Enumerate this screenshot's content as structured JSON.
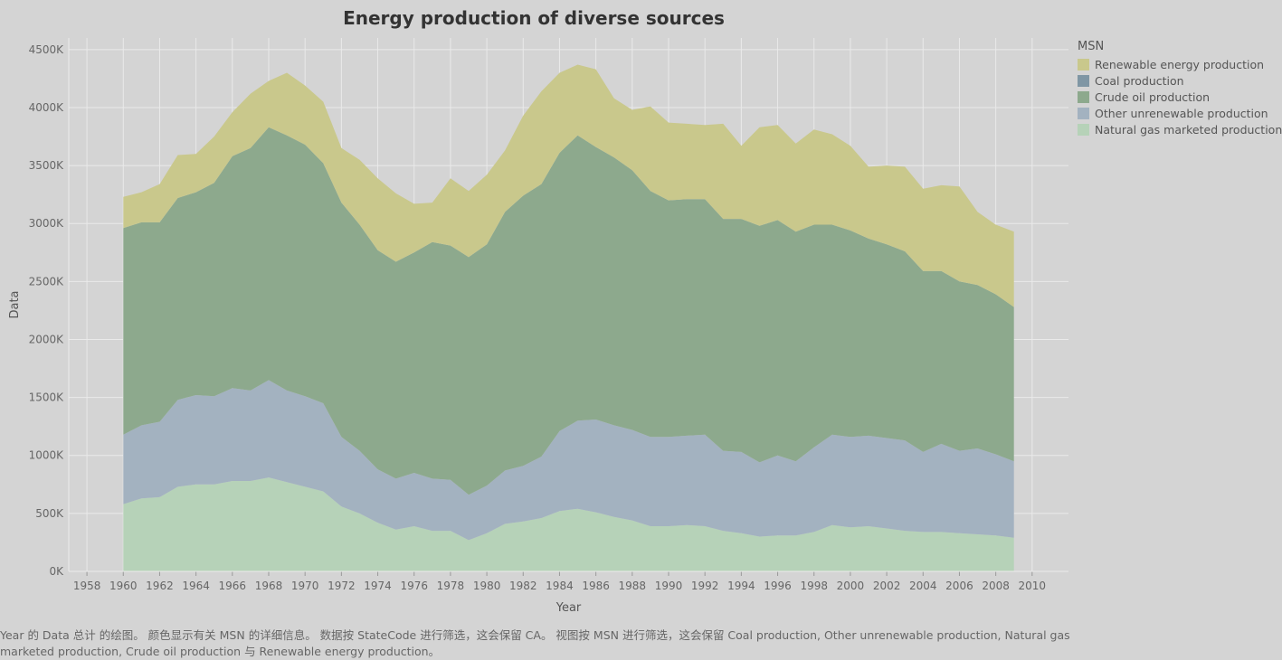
{
  "chart_data": {
    "type": "area",
    "stacked": true,
    "title": "Energy production of diverse sources",
    "xlabel": "Year",
    "ylabel": "Data",
    "xlim": [
      1957,
      2012
    ],
    "ylim": [
      0,
      4600
    ],
    "x_ticks": [
      "1958",
      "1960",
      "1962",
      "1964",
      "1966",
      "1968",
      "1970",
      "1972",
      "1974",
      "1976",
      "1978",
      "1980",
      "1982",
      "1984",
      "1986",
      "1988",
      "1990",
      "1992",
      "1994",
      "1996",
      "1998",
      "2000",
      "2002",
      "2004",
      "2006",
      "2008",
      "2010"
    ],
    "y_ticks": [
      "0K",
      "500K",
      "1000K",
      "1500K",
      "2000K",
      "2500K",
      "3000K",
      "3500K",
      "4000K",
      "4500K"
    ],
    "grid": true,
    "legend_position": "right",
    "legend_title": "MSN",
    "x": [
      1960,
      1961,
      1962,
      1963,
      1964,
      1965,
      1966,
      1967,
      1968,
      1969,
      1970,
      1971,
      1972,
      1973,
      1974,
      1975,
      1976,
      1977,
      1978,
      1979,
      1980,
      1981,
      1982,
      1983,
      1984,
      1985,
      1986,
      1987,
      1988,
      1989,
      1990,
      1991,
      1992,
      1993,
      1994,
      1995,
      1996,
      1997,
      1998,
      1999,
      2000,
      2001,
      2002,
      2003,
      2004,
      2005,
      2006,
      2007,
      2008,
      2009
    ],
    "series": [
      {
        "name": "Natural gas marketed production",
        "color": "#b6d2b8",
        "values": [
          580,
          630,
          640,
          730,
          750,
          750,
          780,
          780,
          810,
          770,
          730,
          690,
          560,
          500,
          420,
          360,
          390,
          350,
          350,
          270,
          330,
          410,
          430,
          460,
          520,
          540,
          510,
          470,
          440,
          390,
          390,
          400,
          390,
          350,
          330,
          300,
          310,
          310,
          340,
          400,
          380,
          390,
          370,
          350,
          340,
          340,
          330,
          320,
          310,
          290
        ]
      },
      {
        "name": "Other unrenewable production",
        "color": "#a3b2c0",
        "values": [
          600,
          630,
          650,
          750,
          770,
          760,
          800,
          780,
          840,
          790,
          780,
          760,
          600,
          540,
          460,
          440,
          460,
          450,
          440,
          390,
          410,
          460,
          480,
          530,
          690,
          760,
          800,
          790,
          780,
          770,
          770,
          770,
          790,
          690,
          700,
          640,
          690,
          640,
          730,
          780,
          780,
          780,
          780,
          780,
          690,
          760,
          710,
          740,
          700,
          660
        ]
      },
      {
        "name": "Coal production",
        "color": "#7f96a4",
        "values": [
          0,
          0,
          0,
          0,
          0,
          0,
          0,
          0,
          0,
          0,
          0,
          0,
          0,
          0,
          0,
          0,
          0,
          0,
          0,
          0,
          0,
          0,
          0,
          0,
          0,
          0,
          0,
          0,
          0,
          0,
          0,
          0,
          0,
          0,
          0,
          0,
          0,
          0,
          0,
          0,
          0,
          0,
          0,
          0,
          0,
          0,
          0,
          0,
          0,
          0
        ]
      },
      {
        "name": "Crude oil production",
        "color": "#8da98d",
        "values": [
          1780,
          1750,
          1720,
          1740,
          1750,
          1840,
          2000,
          2090,
          2180,
          2200,
          2170,
          2070,
          2020,
          1950,
          1890,
          1870,
          1900,
          2040,
          2020,
          2050,
          2080,
          2230,
          2330,
          2350,
          2400,
          2460,
          2350,
          2310,
          2240,
          2120,
          2040,
          2040,
          2030,
          2000,
          2010,
          2040,
          2030,
          1980,
          1920,
          1810,
          1780,
          1700,
          1670,
          1630,
          1560,
          1490,
          1460,
          1410,
          1380,
          1330
        ]
      },
      {
        "name": "Renewable energy production",
        "color": "#c9c88c",
        "values": [
          270,
          260,
          330,
          370,
          330,
          400,
          380,
          470,
          400,
          540,
          510,
          530,
          470,
          560,
          620,
          590,
          420,
          340,
          580,
          570,
          600,
          530,
          690,
          800,
          690,
          610,
          670,
          510,
          520,
          730,
          670,
          650,
          640,
          820,
          630,
          850,
          820,
          760,
          820,
          780,
          730,
          620,
          680,
          730,
          710,
          740,
          820,
          630,
          600,
          650
        ]
      }
    ],
    "legend_order": [
      "Renewable energy production",
      "Coal production",
      "Crude oil production",
      "Other unrenewable production",
      "Natural gas marketed production"
    ]
  },
  "footnote": "Year 的 Data 总计 的绘图。 颜色显示有关 MSN 的详细信息。 数据按 StateCode 进行筛选，这会保留 CA。 视图按 MSN 进行筛选，这会保留 Coal production, Other unrenewable production, Natural gas marketed production, Crude oil production 与 Renewable energy production。"
}
